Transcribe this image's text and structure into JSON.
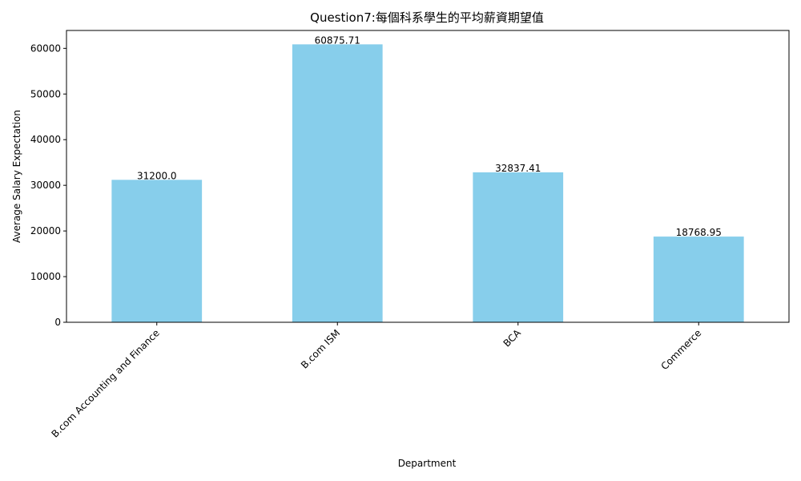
{
  "chart_data": {
    "type": "bar",
    "title": "Question7:每個科系學生的平均薪資期望值",
    "xlabel": "Department",
    "ylabel": "Average Salary Expectation",
    "categories": [
      "B.com Accounting and Finance",
      "B.com ISM",
      "BCA",
      "Commerce"
    ],
    "values": [
      31200.0,
      60875.71,
      32837.41,
      18768.95
    ],
    "value_labels": [
      "31200.0",
      "60875.71",
      "32837.41",
      "18768.95"
    ],
    "ylim": [
      0,
      63920
    ],
    "yticks": [
      0,
      10000,
      20000,
      30000,
      40000,
      50000,
      60000
    ],
    "ytick_labels": [
      "0",
      "10000",
      "20000",
      "30000",
      "40000",
      "50000",
      "60000"
    ],
    "bar_color": "#87ceeb",
    "grid": false,
    "legend": "none"
  }
}
